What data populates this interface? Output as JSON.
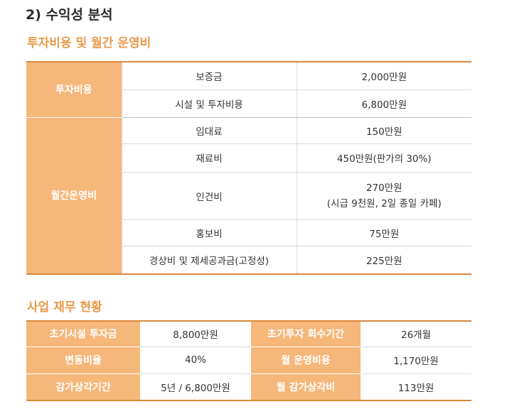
{
  "heading": "2) 수익성 분석",
  "section1": {
    "title": "투자비용 및 월간 운영비",
    "groups": [
      {
        "category": "투자비용",
        "rows": [
          {
            "item": "보증금",
            "value": "2,000만원"
          },
          {
            "item": "시설 및 투자비용",
            "value": "6,800만원"
          }
        ]
      },
      {
        "category": "월간운영비",
        "rows": [
          {
            "item": "임대료",
            "value": "150만원"
          },
          {
            "item": "재료비",
            "value": "450만원(판가의 30%)"
          },
          {
            "item": "인건비",
            "value": "270만원",
            "value_note": "(시급 9천원, 2일 종일 카페)"
          },
          {
            "item": "홍보비",
            "value": "75만원"
          },
          {
            "item": "경상비 및 제세공과금(고정성)",
            "value": "225만원"
          }
        ]
      }
    ]
  },
  "section2": {
    "title": "사업 재무 현황",
    "rows": [
      {
        "label1": "초기시설 투자금",
        "value1": "8,800만원",
        "label2": "초기투자 회수기간",
        "value2": "26개월"
      },
      {
        "label1": "변동비율",
        "value1": "40%",
        "label2": "월 운영비용",
        "value2": "1,170만원"
      },
      {
        "label1": "감가상각기간",
        "value1": "5년 / 6,800만원",
        "label2": "월 감가상각비",
        "value2": "113만원"
      }
    ]
  },
  "colors": {
    "accent": "#e89a4b",
    "header_fill": "#f5b77a",
    "border": "#d9883c"
  }
}
